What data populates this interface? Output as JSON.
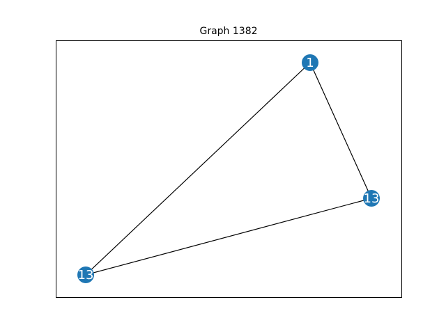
{
  "title": "Graph 1382",
  "colors": {
    "node": "#1f77b4",
    "edge": "#000000",
    "node_label": "#ffffff",
    "frame": "#000000"
  },
  "graph": {
    "nodes": [
      {
        "id": "n1",
        "label": "1"
      },
      {
        "id": "n2",
        "label": "13"
      },
      {
        "id": "n3",
        "label": "13"
      }
    ],
    "edges": [
      {
        "source": "n1",
        "target": "n2"
      },
      {
        "source": "n1",
        "target": "n3"
      },
      {
        "source": "n2",
        "target": "n3"
      }
    ]
  }
}
